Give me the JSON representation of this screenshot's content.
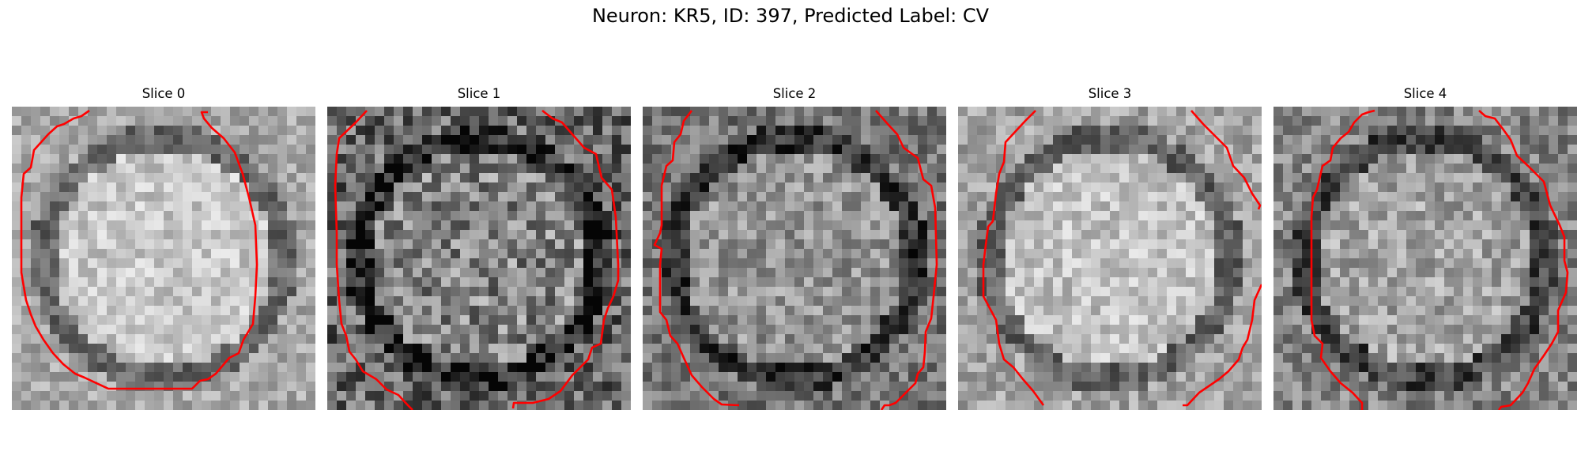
{
  "figure": {
    "title": "Neuron: KR5, ID: 397, Predicted Label: CV"
  },
  "panels": [
    {
      "title": "Slice 0",
      "seed": 11,
      "brightness": 0.78,
      "contrast": 0.13
    },
    {
      "title": "Slice 1",
      "seed": 23,
      "brightness": 0.52,
      "contrast": 0.24
    },
    {
      "title": "Slice 2",
      "seed": 37,
      "brightness": 0.58,
      "contrast": 0.17
    },
    {
      "title": "Slice 3",
      "seed": 41,
      "brightness": 0.76,
      "contrast": 0.14
    },
    {
      "title": "Slice 4",
      "seed": 59,
      "brightness": 0.64,
      "contrast": 0.17
    }
  ],
  "colors": {
    "contour": "#ff0000",
    "background": "#ffffff"
  }
}
